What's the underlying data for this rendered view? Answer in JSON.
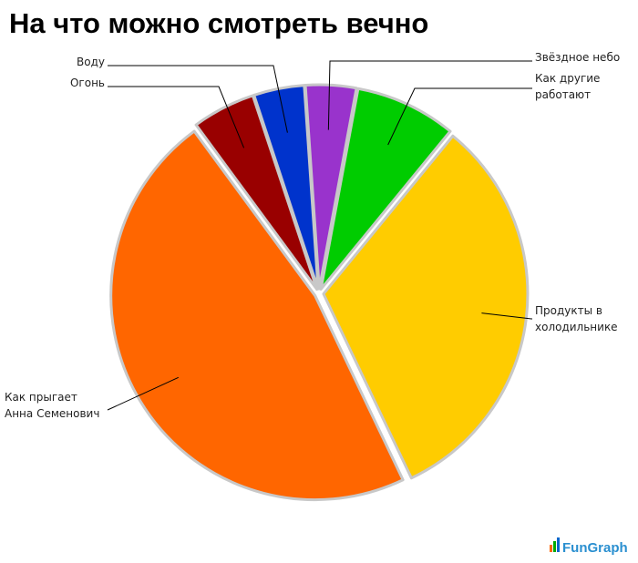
{
  "chart_data": {
    "type": "pie",
    "title": "На что можно смотреть вечно",
    "categories": [
      "Звёздное небо",
      "Как другие\nработают",
      "Продукты в\nхолодильнике",
      "Как прыгает\nАнна Семенович",
      "Огонь",
      "Воду"
    ],
    "values": [
      4,
      8,
      32,
      47,
      5,
      4
    ],
    "colors": [
      "#9933cc",
      "#00cc00",
      "#ffcc00",
      "#ff6600",
      "#990000",
      "#0033cc"
    ],
    "watermark": "FunGraph"
  }
}
